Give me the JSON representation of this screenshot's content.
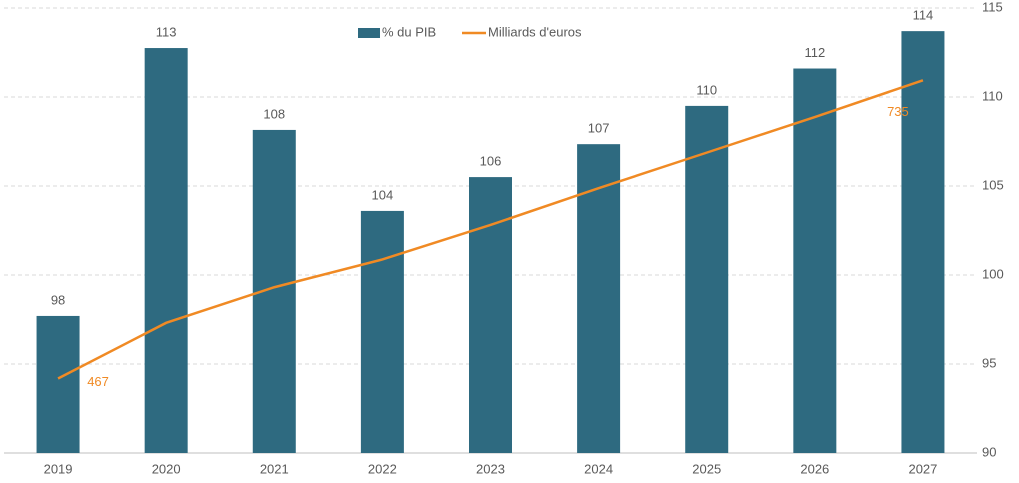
{
  "chart_data": {
    "type": "bar",
    "categories": [
      "2019",
      "2020",
      "2021",
      "2022",
      "2023",
      "2024",
      "2025",
      "2026",
      "2027"
    ],
    "series": [
      {
        "name": "% du PIB",
        "color": "#2e6a80",
        "axis": "y2",
        "values": [
          97.7,
          112.75,
          108.15,
          103.6,
          105.5,
          107.35,
          109.5,
          111.6,
          113.7
        ],
        "value_labels": [
          "98",
          "113",
          "108",
          "104",
          "106",
          "107",
          "110",
          "112",
          "114"
        ]
      },
      {
        "name": "Milliards d'euros",
        "color": "#f08a24",
        "type": "line",
        "values": [
          467,
          517,
          549,
          574,
          605,
          638,
          670,
          702,
          735
        ],
        "value_labels": [
          "467",
          null,
          null,
          null,
          null,
          null,
          null,
          null,
          "735"
        ]
      }
    ],
    "ylim": [
      400,
      800
    ],
    "y2lim": [
      90,
      115
    ],
    "y2ticks": [
      90,
      95,
      100,
      105,
      110,
      115
    ],
    "grid": true,
    "legend": "top"
  }
}
